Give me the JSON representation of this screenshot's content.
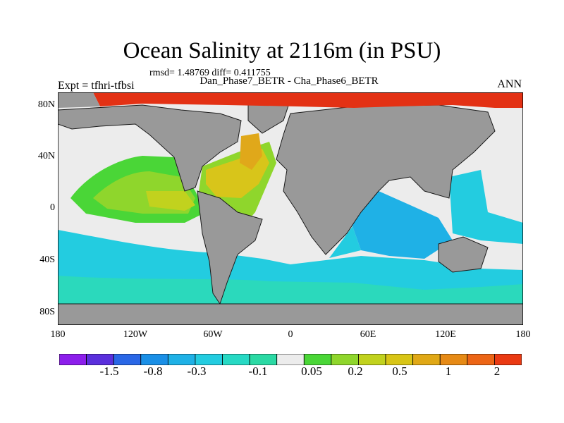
{
  "header": {
    "title": "Ocean Salinity at 2116m (in PSU)",
    "stats": "rmsd= 1.48769 diff= 0.411755",
    "subtitle": "Dan_Phase7_BETR - Cha_Phase6_BETR",
    "experiment": "Expt = tfhri-tfbsi",
    "period": "ANN"
  },
  "axes": {
    "lat_labels": [
      "80N",
      "40N",
      "0",
      "40S",
      "80S"
    ],
    "lon_labels": [
      "180",
      "120W",
      "60W",
      "0",
      "60E",
      "120E",
      "180"
    ]
  },
  "colorbar": {
    "colors": [
      "#8c1eeb",
      "#5a2fdc",
      "#2a67e6",
      "#1a8fe6",
      "#1fb1e6",
      "#23cce0",
      "#27d9c4",
      "#2bd9a4",
      "#ececec",
      "#4ad637",
      "#8fd62c",
      "#c1d21e",
      "#d8c516",
      "#e0a816",
      "#e68a16",
      "#ec6516",
      "#ea3a13"
    ],
    "labels": [
      "-1.5",
      "-0.8",
      "-0.3",
      "-0.1",
      "0.05",
      "0.2",
      "0.5",
      "1",
      "2"
    ]
  },
  "map_colors": {
    "ocean_near_zero": "#ececec",
    "land": "#999999",
    "arctic": "#e33114",
    "atlantic_north": "#d8c51a",
    "atlantic_core": "#e0a81a",
    "pacific_plume": "#8fd62c",
    "pacific_core": "#c1d21e",
    "southern_ocean": "#23cce0",
    "southern_ocean_light": "#2bd9bc",
    "indian_ocean": "#1fb1e6"
  }
}
